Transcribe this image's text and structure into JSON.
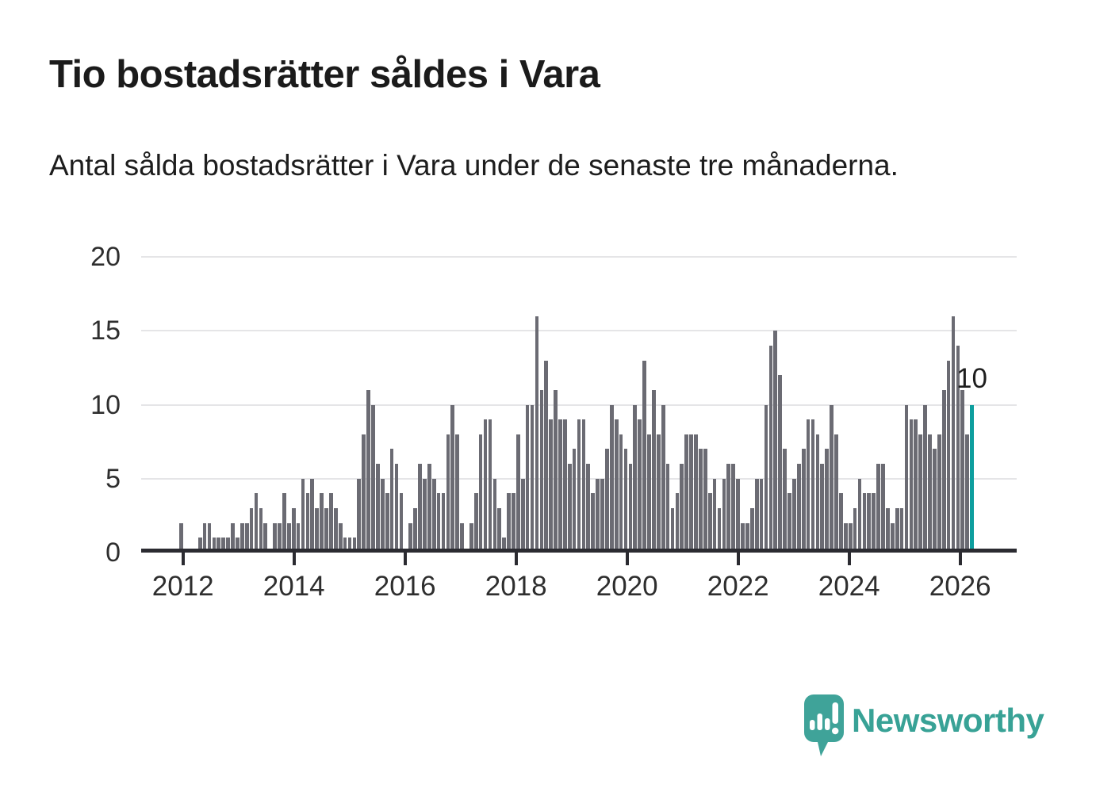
{
  "header": {
    "title": "Tio bostadsrätter såldes i Vara",
    "subtitle": "Antal sålda bostadsrätter i Vara under de senaste tre månaderna."
  },
  "chart_data": {
    "type": "bar",
    "title": "Tio bostadsrätter såldes i Vara",
    "subtitle": "Antal sålda bostadsrätter i Vara under de senaste tre månaderna.",
    "ylabel": "",
    "xlabel": "",
    "ylim": [
      0,
      20
    ],
    "yticks": [
      0,
      5,
      10,
      15,
      20
    ],
    "grid": true,
    "legend_position": "none",
    "frequency": "monthly",
    "start_month": "2011-12",
    "x_tick_labels": [
      "2012",
      "2014",
      "2016",
      "2018",
      "2020",
      "2022",
      "2024",
      "2026"
    ],
    "values": [
      2,
      0,
      0,
      0,
      1,
      2,
      2,
      1,
      1,
      1,
      1,
      2,
      1,
      2,
      2,
      3,
      4,
      3,
      2,
      0,
      2,
      2,
      4,
      2,
      3,
      2,
      5,
      4,
      5,
      3,
      4,
      3,
      4,
      3,
      2,
      1,
      1,
      1,
      5,
      8,
      11,
      10,
      6,
      5,
      4,
      7,
      6,
      4,
      0,
      2,
      3,
      6,
      5,
      6,
      5,
      4,
      4,
      8,
      10,
      8,
      2,
      0,
      2,
      4,
      8,
      9,
      9,
      5,
      3,
      1,
      4,
      4,
      8,
      5,
      10,
      10,
      16,
      11,
      13,
      9,
      11,
      9,
      9,
      6,
      7,
      9,
      9,
      6,
      4,
      5,
      5,
      7,
      10,
      9,
      8,
      7,
      6,
      10,
      9,
      13,
      8,
      11,
      8,
      10,
      6,
      3,
      4,
      6,
      8,
      8,
      8,
      7,
      7,
      4,
      5,
      3,
      5,
      6,
      6,
      5,
      2,
      2,
      3,
      5,
      5,
      10,
      14,
      15,
      12,
      7,
      4,
      5,
      6,
      7,
      9,
      9,
      8,
      6,
      7,
      10,
      8,
      4,
      2,
      2,
      3,
      5,
      4,
      4,
      4,
      6,
      6,
      3,
      2,
      3,
      3,
      10,
      9,
      9,
      8,
      10,
      8,
      7,
      8,
      11,
      13,
      16,
      14,
      11,
      8,
      10
    ],
    "highlight_last_bar": true,
    "last_value_label": "10",
    "colors": {
      "bar": "#6b6b73",
      "highlight": "#0d9e9e",
      "gridline": "#e5e5e7",
      "axis": "#2b2b31",
      "tick_label": "#2e2e2e"
    }
  },
  "footer": {
    "brand": "Newsworthy",
    "brand_color": "#38a296"
  }
}
